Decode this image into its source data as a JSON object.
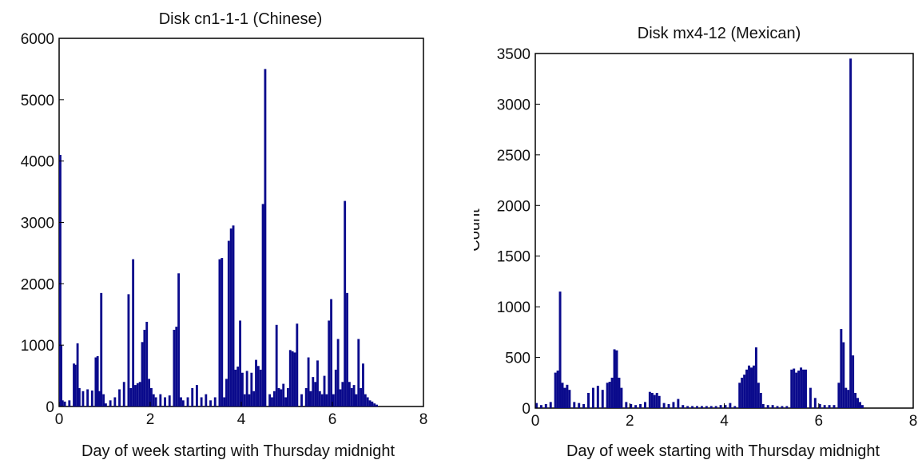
{
  "chart_data": [
    {
      "type": "histogram",
      "title": "Disk cn1-1-1 (Chinese)",
      "xlabel": "Day of week starting with Thursday midnight",
      "ylabel": "",
      "xlim": [
        0,
        8
      ],
      "ylim": [
        0,
        6000
      ],
      "xticks": [
        0,
        2,
        4,
        6,
        8
      ],
      "yticks": [
        0,
        1000,
        2000,
        3000,
        4000,
        5000,
        6000
      ],
      "bar_color": "#0a0a8c",
      "grid": false,
      "series": [
        {
          "x": [
            0.0,
            0.02,
            0.05,
            0.1,
            0.2,
            0.3,
            0.33,
            0.38,
            0.42,
            0.5,
            0.6,
            0.7,
            0.78,
            0.82,
            0.86,
            0.9,
            0.95,
            1.0,
            1.1,
            1.2,
            1.3,
            1.4,
            1.5,
            1.55,
            1.6,
            1.65,
            1.7,
            1.75,
            1.8,
            1.85,
            1.9,
            1.95,
            2.0,
            2.05,
            2.1,
            2.2,
            2.3,
            2.4,
            2.5,
            2.55,
            2.6,
            2.65,
            2.7,
            2.8,
            2.9,
            3.0,
            3.1,
            3.2,
            3.3,
            3.4,
            3.5,
            3.55,
            3.6,
            3.65,
            3.7,
            3.75,
            3.8,
            3.85,
            3.9,
            3.95,
            4.0,
            4.05,
            4.1,
            4.15,
            4.2,
            4.25,
            4.3,
            4.35,
            4.4,
            4.45,
            4.5,
            4.6,
            4.65,
            4.7,
            4.75,
            4.8,
            4.85,
            4.9,
            4.95,
            5.0,
            5.05,
            5.1,
            5.15,
            5.2,
            5.3,
            5.4,
            5.45,
            5.5,
            5.55,
            5.6,
            5.65,
            5.7,
            5.75,
            5.8,
            5.85,
            5.9,
            5.95,
            6.0,
            6.05,
            6.1,
            6.15,
            6.2,
            6.25,
            6.3,
            6.35,
            6.4,
            6.45,
            6.5,
            6.55,
            6.6,
            6.65,
            6.7,
            6.75,
            6.8,
            6.85,
            6.9,
            6.95,
            7.0
          ],
          "y": [
            4100,
            1000,
            100,
            80,
            100,
            700,
            680,
            1030,
            300,
            250,
            280,
            260,
            800,
            820,
            250,
            1850,
            200,
            50,
            100,
            150,
            280,
            400,
            1830,
            300,
            2400,
            350,
            380,
            400,
            1050,
            1250,
            1380,
            450,
            300,
            200,
            150,
            200,
            150,
            180,
            1250,
            1300,
            2170,
            150,
            100,
            150,
            300,
            350,
            150,
            200,
            100,
            150,
            2400,
            2420,
            150,
            450,
            2700,
            2900,
            2950,
            600,
            650,
            1400,
            550,
            200,
            580,
            200,
            550,
            250,
            760,
            660,
            600,
            3300,
            5500,
            200,
            150,
            250,
            1330,
            300,
            280,
            370,
            150,
            300,
            920,
            900,
            880,
            1350,
            200,
            300,
            800,
            250,
            480,
            400,
            750,
            250,
            200,
            500,
            200,
            1400,
            1750,
            200,
            600,
            1100,
            280,
            400,
            3350,
            1850,
            400,
            300,
            350,
            200,
            1100,
            300,
            700,
            200,
            150,
            100,
            80,
            50,
            30,
            0
          ]
        }
      ]
    },
    {
      "type": "histogram",
      "title": "Disk mx4-12 (Mexican)",
      "xlabel": "Day of week starting with Thursday midnight",
      "ylabel": "Count",
      "xlim": [
        0,
        8
      ],
      "ylim": [
        0,
        3500
      ],
      "xticks": [
        0,
        2,
        4,
        6,
        8
      ],
      "yticks": [
        0,
        500,
        1000,
        1500,
        2000,
        2500,
        3000,
        3500
      ],
      "bar_color": "#0a0a8c",
      "grid": false,
      "series": [
        {
          "x": [
            0.0,
            0.1,
            0.2,
            0.3,
            0.4,
            0.45,
            0.5,
            0.55,
            0.6,
            0.65,
            0.7,
            0.8,
            0.9,
            1.0,
            1.1,
            1.2,
            1.3,
            1.4,
            1.5,
            1.55,
            1.6,
            1.65,
            1.7,
            1.75,
            1.8,
            1.9,
            2.0,
            2.1,
            2.2,
            2.3,
            2.4,
            2.45,
            2.5,
            2.55,
            2.6,
            2.7,
            2.8,
            2.9,
            3.0,
            3.1,
            3.2,
            3.3,
            3.4,
            3.5,
            3.6,
            3.7,
            3.8,
            3.9,
            4.0,
            4.1,
            4.2,
            4.3,
            4.35,
            4.4,
            4.45,
            4.5,
            4.55,
            4.6,
            4.65,
            4.7,
            4.75,
            4.8,
            4.9,
            5.0,
            5.1,
            5.2,
            5.3,
            5.4,
            5.45,
            5.5,
            5.55,
            5.6,
            5.65,
            5.7,
            5.8,
            5.9,
            6.0,
            6.1,
            6.2,
            6.3,
            6.4,
            6.45,
            6.5,
            6.55,
            6.6,
            6.65,
            6.7,
            6.75,
            6.8,
            6.85,
            6.9,
            7.0
          ],
          "y": [
            50,
            30,
            40,
            60,
            350,
            370,
            1150,
            250,
            200,
            230,
            180,
            60,
            50,
            40,
            150,
            200,
            220,
            180,
            250,
            260,
            300,
            580,
            570,
            300,
            200,
            60,
            40,
            30,
            40,
            60,
            160,
            150,
            130,
            150,
            120,
            50,
            40,
            60,
            90,
            30,
            20,
            20,
            20,
            20,
            20,
            20,
            20,
            30,
            30,
            50,
            20,
            250,
            300,
            330,
            380,
            420,
            400,
            420,
            600,
            250,
            150,
            40,
            30,
            30,
            20,
            20,
            20,
            380,
            390,
            350,
            370,
            400,
            380,
            380,
            200,
            100,
            40,
            30,
            30,
            30,
            250,
            780,
            650,
            200,
            180,
            3450,
            520,
            150,
            100,
            60,
            30,
            0
          ]
        }
      ]
    }
  ]
}
